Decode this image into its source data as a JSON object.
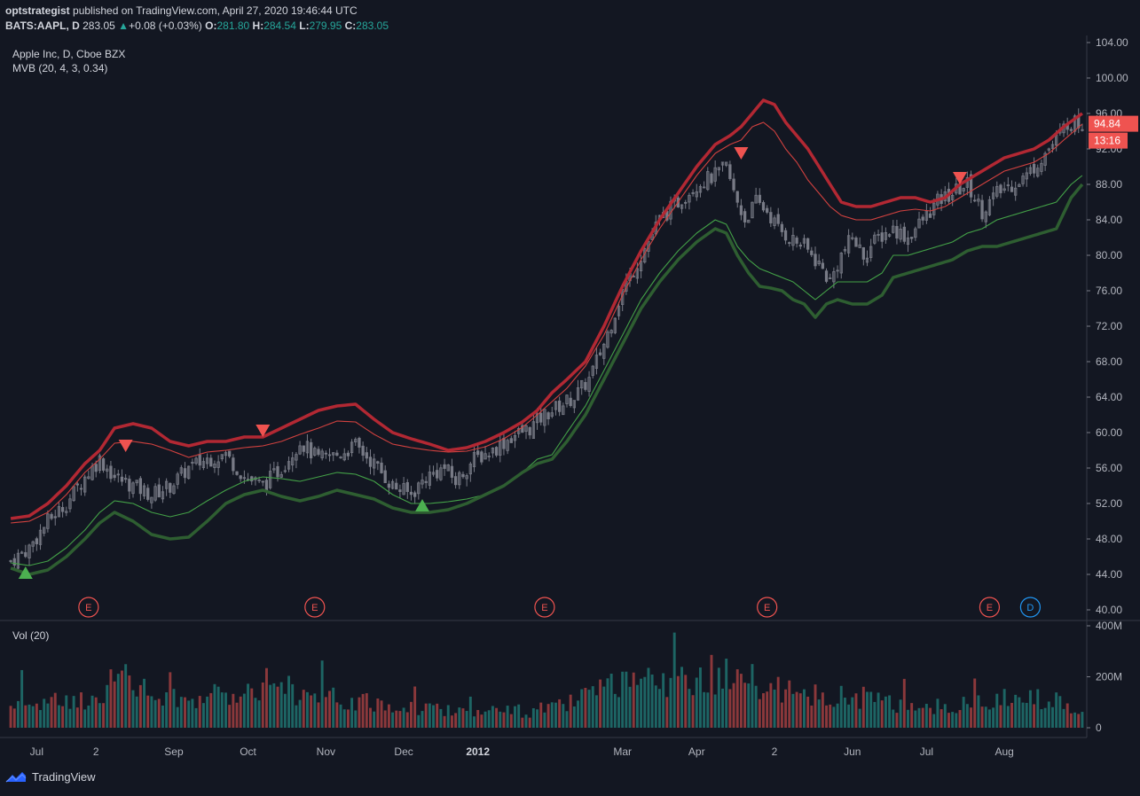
{
  "header": {
    "line1": {
      "user": "optstrategist",
      "rest": " published on TradingView.com, April 27, 2020 19:46:44 UTC"
    },
    "line2": {
      "symbol": "BATS:AAPL, D",
      "price": "283.05",
      "change": "+0.08 (+0.03%)",
      "o_label": "O:",
      "o": "281.80",
      "h_label": "H:",
      "h": "284.54",
      "l_label": "L:",
      "l": "279.95",
      "c_label": "C:",
      "c": "283.05"
    }
  },
  "legend": {
    "series_title": "Apple Inc, D, Cboe BZX",
    "indicator": "MVB (20, 4, 3, 0.34)",
    "volume": "Vol (20)"
  },
  "price_tags": {
    "last": "94.84",
    "countdown": "13:16"
  },
  "footer": {
    "brand": "TradingView"
  },
  "colors": {
    "bg": "#131722",
    "up": "#26a69a",
    "down": "#ef5350",
    "upper_band": "#b22833",
    "lower_band": "#2e7d32",
    "candle": "#787b86",
    "earnings": "#ef5350",
    "dividend": "#2196f3"
  },
  "chart_data": {
    "type": "line",
    "title": "Apple Inc, D, Cboe BZX",
    "y_axis": {
      "ticks": [
        "104.00",
        "100.00",
        "96.00",
        "92.00",
        "88.00",
        "84.00",
        "80.00",
        "76.00",
        "72.00",
        "68.00",
        "64.00",
        "60.00",
        "56.00",
        "52.00",
        "48.00",
        "44.00",
        "40.00"
      ],
      "range": [
        40,
        104
      ]
    },
    "volume_axis": {
      "ticks": [
        "400M",
        "200M",
        "0"
      ],
      "range": [
        0,
        400
      ]
    },
    "x_axis": {
      "labels": [
        {
          "text": "Jul",
          "idx": 7
        },
        {
          "text": "2",
          "idx": 23
        },
        {
          "text": "Sep",
          "idx": 44
        },
        {
          "text": "Oct",
          "idx": 64
        },
        {
          "text": "Nov",
          "idx": 85
        },
        {
          "text": "Dec",
          "idx": 106
        },
        {
          "text": "2012",
          "idx": 126
        },
        {
          "text": "Mar",
          "idx": 165
        },
        {
          "text": "Apr",
          "idx": 185
        },
        {
          "text": "2",
          "idx": 206
        },
        {
          "text": "Jun",
          "idx": 227
        },
        {
          "text": "Jul",
          "idx": 247
        },
        {
          "text": "Aug",
          "idx": 268
        }
      ]
    },
    "n_bars": 290,
    "close_keypoints": [
      [
        0,
        45.5
      ],
      [
        5,
        47
      ],
      [
        10,
        50
      ],
      [
        15,
        52
      ],
      [
        20,
        55
      ],
      [
        24,
        57
      ],
      [
        28,
        55
      ],
      [
        33,
        54
      ],
      [
        38,
        53
      ],
      [
        43,
        54
      ],
      [
        48,
        56
      ],
      [
        53,
        57
      ],
      [
        58,
        57.5
      ],
      [
        63,
        55
      ],
      [
        68,
        54
      ],
      [
        73,
        56
      ],
      [
        78,
        59
      ],
      [
        83,
        57
      ],
      [
        88,
        57.5
      ],
      [
        93,
        58.5
      ],
      [
        98,
        56.5
      ],
      [
        103,
        54
      ],
      [
        108,
        53
      ],
      [
        112,
        55
      ],
      [
        117,
        56
      ],
      [
        120,
        54.5
      ],
      [
        125,
        57
      ],
      [
        130,
        58
      ],
      [
        135,
        59.5
      ],
      [
        140,
        60.5
      ],
      [
        144,
        62
      ],
      [
        148,
        63
      ],
      [
        152,
        64
      ],
      [
        156,
        66
      ],
      [
        160,
        70
      ],
      [
        165,
        76
      ],
      [
        170,
        80
      ],
      [
        175,
        84
      ],
      [
        180,
        86
      ],
      [
        185,
        88
      ],
      [
        190,
        89
      ],
      [
        193,
        90
      ],
      [
        195,
        87
      ],
      [
        198,
        84
      ],
      [
        201,
        86
      ],
      [
        204,
        85
      ],
      [
        207,
        83
      ],
      [
        210,
        82
      ],
      [
        214,
        81
      ],
      [
        218,
        79
      ],
      [
        221,
        77
      ],
      [
        224,
        80
      ],
      [
        227,
        82
      ],
      [
        230,
        80
      ],
      [
        234,
        82
      ],
      [
        238,
        83
      ],
      [
        242,
        82
      ],
      [
        246,
        84
      ],
      [
        250,
        86
      ],
      [
        254,
        87
      ],
      [
        258,
        88
      ],
      [
        262,
        85
      ],
      [
        266,
        87
      ],
      [
        270,
        88
      ],
      [
        274,
        89
      ],
      [
        278,
        91
      ],
      [
        282,
        93
      ],
      [
        285,
        95
      ],
      [
        289,
        94.84
      ]
    ],
    "upper_band_keypoints": [
      [
        0,
        50.3
      ],
      [
        5,
        50.6
      ],
      [
        10,
        52
      ],
      [
        15,
        54
      ],
      [
        20,
        56.5
      ],
      [
        24,
        58
      ],
      [
        28,
        60.5
      ],
      [
        33,
        61
      ],
      [
        38,
        60.5
      ],
      [
        43,
        59
      ],
      [
        48,
        58.5
      ],
      [
        53,
        59
      ],
      [
        58,
        59
      ],
      [
        63,
        59.5
      ],
      [
        68,
        59.5
      ],
      [
        73,
        60.5
      ],
      [
        78,
        61.5
      ],
      [
        83,
        62.5
      ],
      [
        88,
        63
      ],
      [
        93,
        63.2
      ],
      [
        98,
        61.5
      ],
      [
        103,
        60
      ],
      [
        108,
        59.3
      ],
      [
        113,
        58.7
      ],
      [
        118,
        58
      ],
      [
        123,
        58.3
      ],
      [
        128,
        59
      ],
      [
        133,
        60
      ],
      [
        138,
        61.2
      ],
      [
        142,
        62.5
      ],
      [
        146,
        64.5
      ],
      [
        150,
        66
      ],
      [
        155,
        68
      ],
      [
        160,
        72
      ],
      [
        165,
        76.5
      ],
      [
        170,
        80.5
      ],
      [
        175,
        84
      ],
      [
        180,
        87
      ],
      [
        185,
        90
      ],
      [
        190,
        92.5
      ],
      [
        194,
        93.5
      ],
      [
        197,
        94.5
      ],
      [
        200,
        96
      ],
      [
        203,
        97.5
      ],
      [
        206,
        97
      ],
      [
        209,
        95
      ],
      [
        212,
        93.5
      ],
      [
        215,
        92
      ],
      [
        218,
        90
      ],
      [
        221,
        88
      ],
      [
        224,
        86
      ],
      [
        228,
        85.5
      ],
      [
        232,
        85.5
      ],
      [
        236,
        86
      ],
      [
        240,
        86.5
      ],
      [
        244,
        86.5
      ],
      [
        248,
        86
      ],
      [
        252,
        86.5
      ],
      [
        256,
        88
      ],
      [
        260,
        89
      ],
      [
        264,
        90
      ],
      [
        268,
        91
      ],
      [
        272,
        91.5
      ],
      [
        276,
        92
      ],
      [
        280,
        93
      ],
      [
        284,
        94.5
      ],
      [
        289,
        96
      ]
    ],
    "upper_inner_keypoints": [
      [
        0,
        49.8
      ],
      [
        5,
        50
      ],
      [
        10,
        51
      ],
      [
        15,
        53
      ],
      [
        20,
        55.5
      ],
      [
        24,
        57
      ],
      [
        28,
        58.8
      ],
      [
        33,
        59
      ],
      [
        38,
        58.7
      ],
      [
        43,
        58
      ],
      [
        48,
        57.2
      ],
      [
        53,
        57.8
      ],
      [
        58,
        58
      ],
      [
        63,
        58.3
      ],
      [
        68,
        58.5
      ],
      [
        73,
        59
      ],
      [
        78,
        59.8
      ],
      [
        83,
        60.5
      ],
      [
        88,
        61.3
      ],
      [
        93,
        61.2
      ],
      [
        98,
        59.8
      ],
      [
        103,
        58.7
      ],
      [
        108,
        58.3
      ],
      [
        113,
        58
      ],
      [
        118,
        57.8
      ],
      [
        123,
        57.9
      ],
      [
        128,
        58.4
      ],
      [
        133,
        59.3
      ],
      [
        138,
        60.6
      ],
      [
        142,
        62
      ],
      [
        146,
        63.5
      ],
      [
        150,
        65
      ],
      [
        155,
        67.5
      ],
      [
        160,
        71
      ],
      [
        165,
        75.5
      ],
      [
        170,
        79.5
      ],
      [
        175,
        83
      ],
      [
        180,
        86
      ],
      [
        185,
        89
      ],
      [
        190,
        91.5
      ],
      [
        194,
        92.5
      ],
      [
        197,
        93
      ],
      [
        200,
        94.5
      ],
      [
        203,
        95
      ],
      [
        206,
        94
      ],
      [
        209,
        92
      ],
      [
        212,
        90.5
      ],
      [
        215,
        88.5
      ],
      [
        218,
        87
      ],
      [
        221,
        85.5
      ],
      [
        224,
        84.5
      ],
      [
        228,
        84
      ],
      [
        232,
        84
      ],
      [
        236,
        84.5
      ],
      [
        240,
        85
      ],
      [
        244,
        85.2
      ],
      [
        248,
        85
      ],
      [
        252,
        85.5
      ],
      [
        256,
        86.5
      ],
      [
        260,
        87.5
      ],
      [
        264,
        88.5
      ],
      [
        268,
        89.5
      ],
      [
        272,
        90
      ],
      [
        276,
        90.5
      ],
      [
        280,
        91.5
      ],
      [
        284,
        93
      ],
      [
        289,
        94.8
      ]
    ],
    "lower_inner_keypoints": [
      [
        0,
        45.3
      ],
      [
        5,
        45
      ],
      [
        10,
        45.5
      ],
      [
        15,
        47
      ],
      [
        20,
        49
      ],
      [
        24,
        51
      ],
      [
        28,
        52.3
      ],
      [
        33,
        52
      ],
      [
        38,
        51
      ],
      [
        43,
        50.5
      ],
      [
        48,
        51
      ],
      [
        53,
        52.3
      ],
      [
        58,
        53.5
      ],
      [
        63,
        54.5
      ],
      [
        68,
        55
      ],
      [
        73,
        54.8
      ],
      [
        78,
        54.5
      ],
      [
        83,
        55
      ],
      [
        88,
        55.5
      ],
      [
        93,
        55.3
      ],
      [
        98,
        54.5
      ],
      [
        103,
        53
      ],
      [
        108,
        52
      ],
      [
        113,
        52
      ],
      [
        118,
        52.2
      ],
      [
        123,
        52.5
      ],
      [
        128,
        53
      ],
      [
        133,
        54
      ],
      [
        138,
        55.5
      ],
      [
        142,
        57
      ],
      [
        146,
        57.5
      ],
      [
        150,
        60
      ],
      [
        155,
        63
      ],
      [
        160,
        67
      ],
      [
        165,
        71
      ],
      [
        170,
        75
      ],
      [
        175,
        78
      ],
      [
        180,
        80.5
      ],
      [
        185,
        82.5
      ],
      [
        190,
        84
      ],
      [
        193,
        83.5
      ],
      [
        196,
        81
      ],
      [
        199,
        79.5
      ],
      [
        202,
        78.5
      ],
      [
        205,
        78
      ],
      [
        208,
        77.5
      ],
      [
        211,
        77
      ],
      [
        214,
        76
      ],
      [
        217,
        75
      ],
      [
        220,
        76
      ],
      [
        223,
        77
      ],
      [
        227,
        77
      ],
      [
        231,
        77
      ],
      [
        235,
        78
      ],
      [
        238,
        80
      ],
      [
        242,
        80
      ],
      [
        246,
        80.5
      ],
      [
        250,
        81
      ],
      [
        254,
        81.5
      ],
      [
        258,
        82.5
      ],
      [
        262,
        83
      ],
      [
        266,
        84
      ],
      [
        270,
        84.5
      ],
      [
        274,
        85
      ],
      [
        278,
        85.5
      ],
      [
        282,
        86
      ],
      [
        286,
        88
      ],
      [
        289,
        89
      ]
    ],
    "lower_band_keypoints": [
      [
        0,
        44.7
      ],
      [
        5,
        44
      ],
      [
        10,
        44.5
      ],
      [
        15,
        46
      ],
      [
        20,
        48
      ],
      [
        24,
        49.8
      ],
      [
        28,
        51
      ],
      [
        33,
        50
      ],
      [
        38,
        48.5
      ],
      [
        43,
        48
      ],
      [
        48,
        48.2
      ],
      [
        53,
        50
      ],
      [
        58,
        52
      ],
      [
        63,
        53
      ],
      [
        68,
        53.5
      ],
      [
        73,
        52.8
      ],
      [
        78,
        52.3
      ],
      [
        83,
        52.8
      ],
      [
        88,
        53.5
      ],
      [
        93,
        53
      ],
      [
        98,
        52.5
      ],
      [
        103,
        51.5
      ],
      [
        108,
        51
      ],
      [
        113,
        51
      ],
      [
        118,
        51.3
      ],
      [
        123,
        52
      ],
      [
        128,
        53
      ],
      [
        133,
        54
      ],
      [
        138,
        55.5
      ],
      [
        142,
        56.5
      ],
      [
        146,
        57
      ],
      [
        150,
        59
      ],
      [
        155,
        62
      ],
      [
        160,
        66
      ],
      [
        165,
        70
      ],
      [
        170,
        74
      ],
      [
        175,
        77
      ],
      [
        180,
        79.5
      ],
      [
        185,
        81.5
      ],
      [
        190,
        83
      ],
      [
        193,
        82.5
      ],
      [
        196,
        80
      ],
      [
        199,
        78
      ],
      [
        202,
        76.5
      ],
      [
        205,
        76.3
      ],
      [
        208,
        76
      ],
      [
        211,
        75
      ],
      [
        214,
        74.5
      ],
      [
        217,
        73
      ],
      [
        220,
        74.5
      ],
      [
        223,
        75
      ],
      [
        227,
        74.5
      ],
      [
        231,
        74.5
      ],
      [
        235,
        75.5
      ],
      [
        238,
        77.5
      ],
      [
        242,
        78
      ],
      [
        246,
        78.5
      ],
      [
        250,
        79
      ],
      [
        254,
        79.5
      ],
      [
        258,
        80.5
      ],
      [
        262,
        81
      ],
      [
        266,
        81
      ],
      [
        270,
        81.5
      ],
      [
        274,
        82
      ],
      [
        278,
        82.5
      ],
      [
        282,
        83
      ],
      [
        286,
        86.5
      ],
      [
        289,
        88
      ]
    ],
    "signals": [
      {
        "type": "buy",
        "idx": 4,
        "price": 44.2
      },
      {
        "type": "sell",
        "idx": 31,
        "price": 58.5
      },
      {
        "type": "sell",
        "idx": 68,
        "price": 60.2
      },
      {
        "type": "buy",
        "idx": 111,
        "price": 51.8
      },
      {
        "type": "sell",
        "idx": 197,
        "price": 91.5
      },
      {
        "type": "sell",
        "idx": 256,
        "price": 88.7
      }
    ],
    "events": [
      {
        "label": "E",
        "kind": "earnings",
        "idx": 21
      },
      {
        "label": "E",
        "kind": "earnings",
        "idx": 82
      },
      {
        "label": "E",
        "kind": "earnings",
        "idx": 144
      },
      {
        "label": "E",
        "kind": "earnings",
        "idx": 204
      },
      {
        "label": "E",
        "kind": "earnings",
        "idx": 264
      },
      {
        "label": "D",
        "kind": "dividend",
        "idx": 275
      }
    ],
    "volume_series_unit": "M",
    "volume_keypoints": [
      [
        0,
        90
      ],
      [
        20,
        110
      ],
      [
        30,
        200
      ],
      [
        40,
        110
      ],
      [
        60,
        130
      ],
      [
        70,
        200
      ],
      [
        80,
        120
      ],
      [
        90,
        110
      ],
      [
        100,
        90
      ],
      [
        120,
        70
      ],
      [
        140,
        65
      ],
      [
        150,
        90
      ],
      [
        160,
        150
      ],
      [
        170,
        170
      ],
      [
        180,
        175
      ],
      [
        185,
        220
      ],
      [
        195,
        200
      ],
      [
        205,
        160
      ],
      [
        215,
        120
      ],
      [
        225,
        130
      ],
      [
        240,
        90
      ],
      [
        255,
        85
      ],
      [
        265,
        110
      ],
      [
        280,
        120
      ],
      [
        289,
        80
      ]
    ]
  }
}
